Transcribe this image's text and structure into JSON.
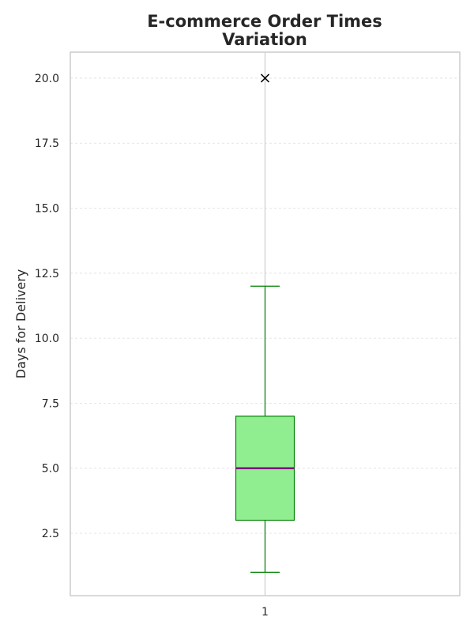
{
  "chart_data": {
    "type": "box",
    "title_lines": [
      "E-commerce Order Times",
      "Variation"
    ],
    "xlabel": "",
    "ylabel": "Days for Delivery",
    "categories": [
      "1"
    ],
    "ylim": [
      0.1,
      21.0
    ],
    "yticks": [
      2.5,
      5.0,
      7.5,
      10.0,
      12.5,
      15.0,
      17.5,
      20.0
    ],
    "ytick_labels": [
      "2.5",
      "5.0",
      "7.5",
      "10.0",
      "12.5",
      "15.0",
      "17.5",
      "20.0"
    ],
    "grid": true,
    "boxes": [
      {
        "category": "1",
        "whisker_low": 1,
        "q1": 3,
        "median": 5,
        "q3": 7,
        "whisker_high": 12,
        "outliers": [
          20
        ]
      }
    ],
    "colors": {
      "box_fill": "#90ee90",
      "box_edge": "#008000",
      "whisker": "#008000",
      "median": "#800080",
      "outlier": "#000000",
      "grid": "#dddddd",
      "axes_edge": "#cccccc",
      "center_line": "#cccccc"
    }
  }
}
